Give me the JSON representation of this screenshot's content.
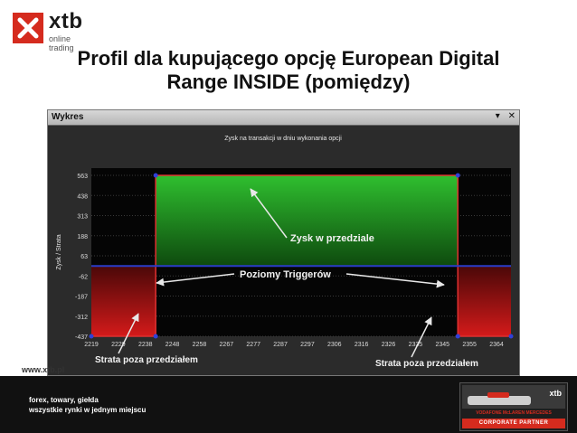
{
  "brand": {
    "name": "xtb",
    "tagline": "online trading",
    "website": "www.xtb.pl"
  },
  "slide": {
    "title_line1": "Profil dla kupującego opcję European Digital",
    "title_line2": "Range INSIDE (pomiędzy)"
  },
  "panel": {
    "title": "Wykres",
    "controls": [
      "▾",
      "✕"
    ]
  },
  "annotations": {
    "profit": "Zysk w przedziale",
    "triggers": "Poziomy Triggerów",
    "loss_left": "Strata poza przedziałem",
    "loss_right": "Strata poza przedziałem"
  },
  "footer": {
    "line1": "forex, towary, giełda",
    "line2": "wszystkie rynki w jednym miejscu"
  },
  "partner": {
    "logo": "xtb",
    "line1": "VODAFONE McLAREN MERCEDES",
    "line2": "CORPORATE PARTNER"
  },
  "colors": {
    "accent": "#d52b1e",
    "profit": "#1f9a1f",
    "loss": "#c41a1a",
    "trigger": "#2a3cc8"
  },
  "chart_data": {
    "type": "area",
    "title": "Zysk na transakcji w dniu wykonania opcji",
    "xlabel": "",
    "ylabel": "Zysk / Strata",
    "x_ticks": [
      2219,
      2229,
      2238,
      2248,
      2258,
      2267,
      2277,
      2287,
      2297,
      2306,
      2316,
      2326,
      2335,
      2345,
      2355,
      2364
    ],
    "y_ticks": [
      563,
      438,
      313,
      188,
      63,
      -62,
      -187,
      -312,
      -437
    ],
    "xlim": [
      2219,
      2369
    ],
    "ylim": [
      -437,
      600
    ],
    "lower_trigger": 2242,
    "upper_trigger": 2350,
    "profit_value": 563,
    "loss_value": -437,
    "series": [
      {
        "values": [
          {
            "x": 2219,
            "y": -437
          },
          {
            "x": 2242,
            "y": -437
          },
          {
            "x": 2242,
            "y": 563
          },
          {
            "x": 2350,
            "y": 563
          },
          {
            "x": 2350,
            "y": -437
          },
          {
            "x": 2369,
            "y": -437
          }
        ]
      }
    ],
    "grid": true
  }
}
